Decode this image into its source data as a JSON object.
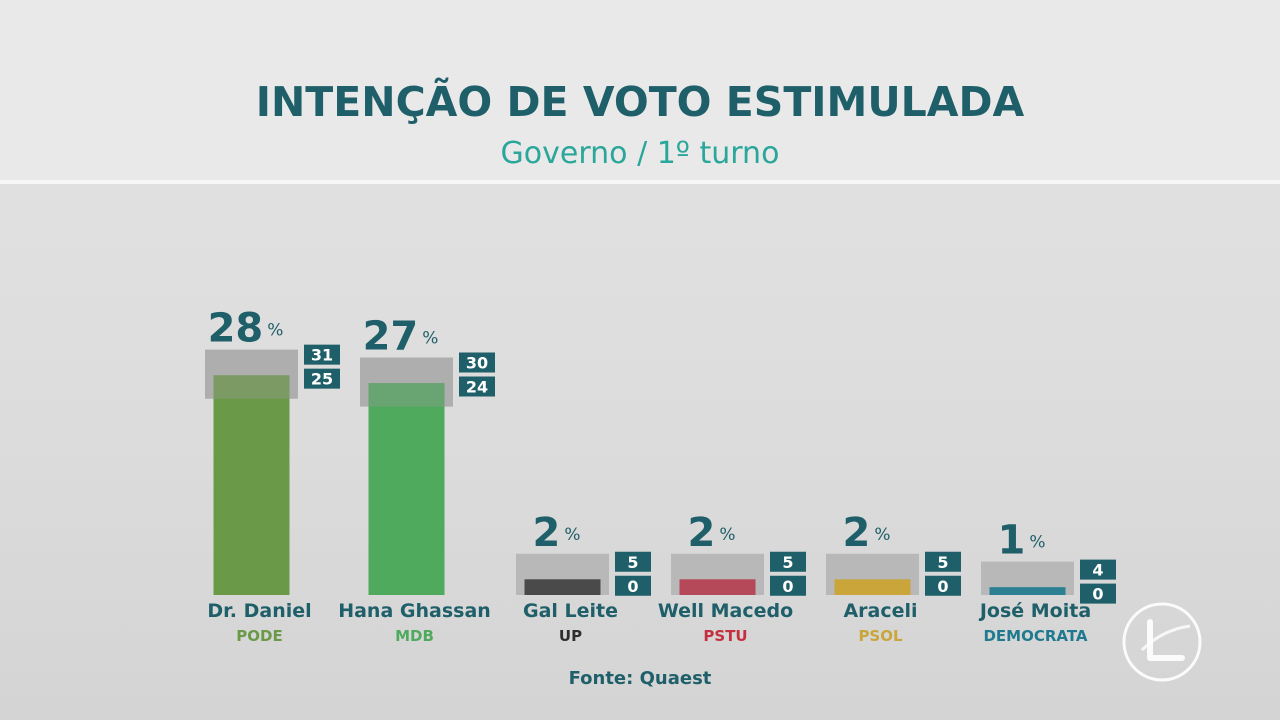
{
  "header": {
    "title": "INTENÇÃO DE VOTO ESTIMULADA",
    "subtitle": "Governo / 1º turno"
  },
  "source": "Fonte: Quaest",
  "colors": {
    "title": "#1f5f69",
    "subtitle": "#2aa79a",
    "band": "#b3b3b3",
    "badge": "#1f5f69"
  },
  "chart_data": {
    "type": "bar",
    "title": "INTENÇÃO DE VOTO ESTIMULADA",
    "subtitle": "Governo / 1º turno",
    "unit": "%",
    "categories": [
      "Dr. Daniel",
      "Hana Ghassan",
      "Gal Leite",
      "Well Macedo",
      "Araceli",
      "José Moita"
    ],
    "parties": [
      "PODE",
      "MDB",
      "UP",
      "PSTU",
      "PSOL",
      "DEMOCRATA"
    ],
    "values": [
      28,
      27,
      2,
      2,
      2,
      1
    ],
    "upper": [
      31,
      30,
      5,
      5,
      5,
      4
    ],
    "lower": [
      25,
      24,
      0,
      0,
      0,
      0
    ],
    "bar_colors": [
      "#6a9a48",
      "#4faa5e",
      "#4a4a4a",
      "#b5495a",
      "#c9a53a",
      "#2d7f92"
    ],
    "party_colors": [
      "#6a9a48",
      "#4faa5e",
      "#2e2e2e",
      "#c4303f",
      "#c9a53a",
      "#1f7a8f"
    ],
    "ylim": [
      0,
      31
    ],
    "grid": false,
    "legend": "none"
  }
}
